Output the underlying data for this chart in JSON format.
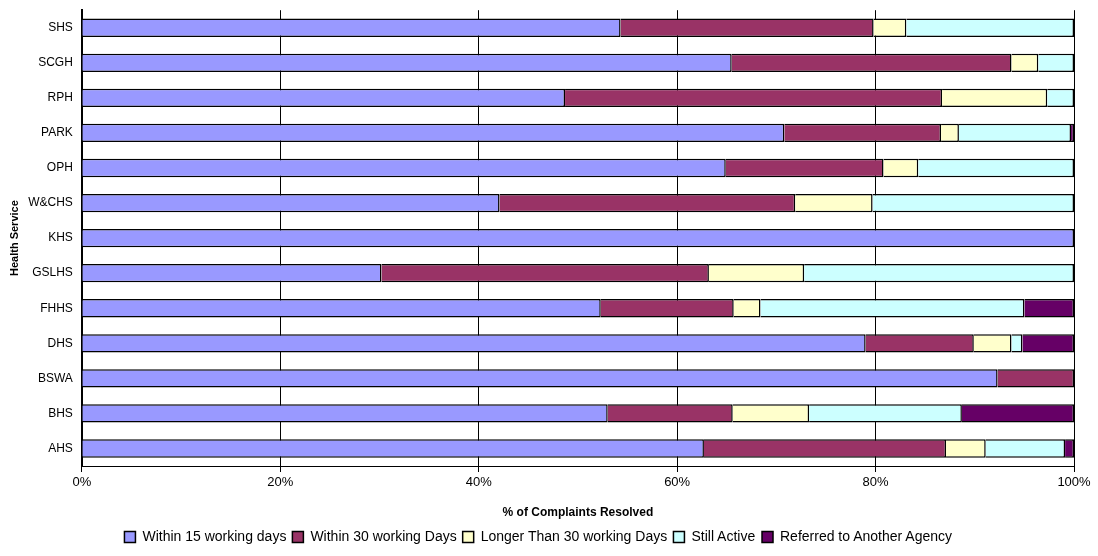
{
  "chart_data": {
    "type": "bar",
    "orientation": "horizontal",
    "stacked": true,
    "xlabel": "% of Complaints Resolved",
    "ylabel": "Health Service",
    "categories": [
      "SHS",
      "SCGH",
      "RPH",
      "PARK",
      "OPH",
      "W&CHS",
      "KHS",
      "GSLHS",
      "FHHS",
      "DHS",
      "BSWA",
      "BHS",
      "AHS"
    ],
    "series": [
      {
        "name": "Within 15 working days",
        "color": "#9999ff",
        "values": [
          54.3,
          65.5,
          48.7,
          70.8,
          64.9,
          42.1,
          100,
          30.2,
          52.3,
          79.0,
          92.3,
          53.0,
          62.7
        ]
      },
      {
        "name": "Within 30 working Days",
        "color": "#993366",
        "values": [
          25.5,
          28.2,
          38.0,
          15.8,
          15.9,
          29.8,
          0,
          33.0,
          13.4,
          10.9,
          7.7,
          12.6,
          24.4
        ]
      },
      {
        "name": "Longer Than 30 working Days",
        "color": "#ffffcc",
        "values": [
          3.3,
          2.7,
          10.6,
          1.8,
          3.5,
          7.8,
          0,
          9.6,
          2.7,
          3.8,
          0,
          7.7,
          4.0
        ]
      },
      {
        "name": "Still Active",
        "color": "#ccffff",
        "values": [
          16.9,
          3.6,
          2.7,
          11.3,
          15.7,
          20.3,
          0,
          27.2,
          26.6,
          1.1,
          0,
          15.4,
          8.0
        ]
      },
      {
        "name": "Referred to Another Agency",
        "color": "#660066",
        "values": [
          0,
          0,
          0,
          0.3,
          0,
          0,
          0,
          0,
          5.0,
          5.2,
          0,
          11.3,
          0.9
        ]
      }
    ],
    "xlim": [
      0,
      100
    ],
    "xticks": [
      {
        "value": 0,
        "label": "0%"
      },
      {
        "value": 20,
        "label": "20%"
      },
      {
        "value": 40,
        "label": "40%"
      },
      {
        "value": 60,
        "label": "60%"
      },
      {
        "value": 80,
        "label": "80%"
      },
      {
        "value": 100,
        "label": "100%"
      }
    ],
    "grid": "x",
    "legend": "bottom"
  }
}
